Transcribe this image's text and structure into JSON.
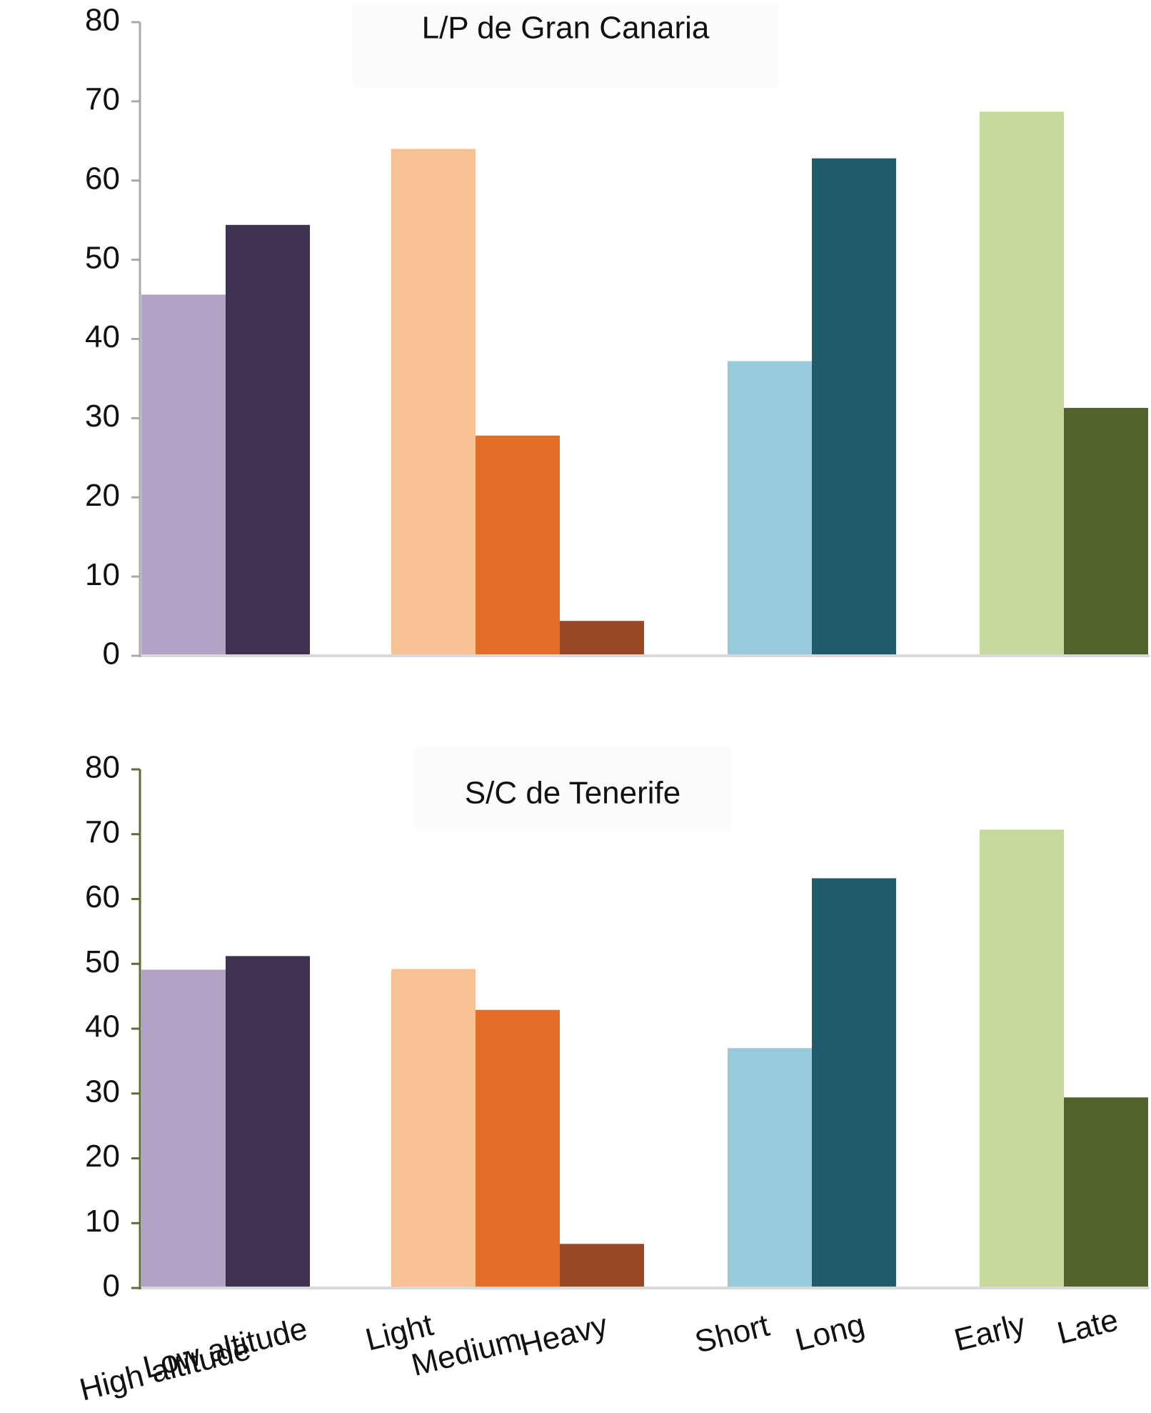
{
  "chart_data": [
    {
      "type": "bar",
      "title": "L/P de Gran Canaria",
      "xlabel": "",
      "ylabel": "",
      "ylim": [
        0,
        80
      ],
      "yticks": [
        "0",
        "10",
        "20",
        "30",
        "40",
        "50",
        "60",
        "70",
        "80"
      ],
      "categories": [
        "High altitude",
        "Low altitude",
        "Light",
        "Medium",
        "Heavy",
        "Short",
        "Long",
        "Early",
        "Late"
      ],
      "groups": [
        {
          "categories": [
            "High altitude",
            "Low altitude"
          ],
          "values": [
            45.6,
            54.4
          ],
          "colors": [
            "#b1a2c6",
            "#3f3250"
          ]
        },
        {
          "categories": [
            "Light",
            "Medium",
            "Heavy"
          ],
          "values": [
            64.0,
            27.8,
            4.4
          ],
          "colors": [
            "#f8c194",
            "#e36e27",
            "#984823"
          ]
        },
        {
          "categories": [
            "Short",
            "Long"
          ],
          "values": [
            37.2,
            62.8
          ],
          "colors": [
            "#96cbdc",
            "#205b6b"
          ]
        },
        {
          "categories": [
            "Early",
            "Late"
          ],
          "values": [
            68.7,
            31.3
          ],
          "colors": [
            "#c6da9e",
            "#50632c"
          ]
        }
      ],
      "grid": false,
      "legend": "none"
    },
    {
      "type": "bar",
      "title": "S/C de Tenerife",
      "xlabel": "",
      "ylabel": "",
      "ylim": [
        0,
        80
      ],
      "yticks": [
        "0",
        "10",
        "20",
        "30",
        "40",
        "50",
        "60",
        "70",
        "80"
      ],
      "categories": [
        "High altitude",
        "Low altitude",
        "Light",
        "Medium",
        "Heavy",
        "Short",
        "Long",
        "Early",
        "Late"
      ],
      "groups": [
        {
          "categories": [
            "High altitude",
            "Low altitude"
          ],
          "values": [
            49.1,
            51.2
          ],
          "colors": [
            "#b1a2c6",
            "#3f3250"
          ]
        },
        {
          "categories": [
            "Light",
            "Medium",
            "Heavy"
          ],
          "values": [
            49.2,
            42.9,
            6.8
          ],
          "colors": [
            "#f8c194",
            "#e36e27",
            "#984823"
          ]
        },
        {
          "categories": [
            "Short",
            "Long"
          ],
          "values": [
            37.0,
            63.2
          ],
          "colors": [
            "#96cbdc",
            "#205b6b"
          ]
        },
        {
          "categories": [
            "Early",
            "Late"
          ],
          "values": [
            70.7,
            29.4
          ],
          "colors": [
            "#c6da9e",
            "#50632c"
          ]
        }
      ],
      "grid": false,
      "legend": "none"
    }
  ]
}
